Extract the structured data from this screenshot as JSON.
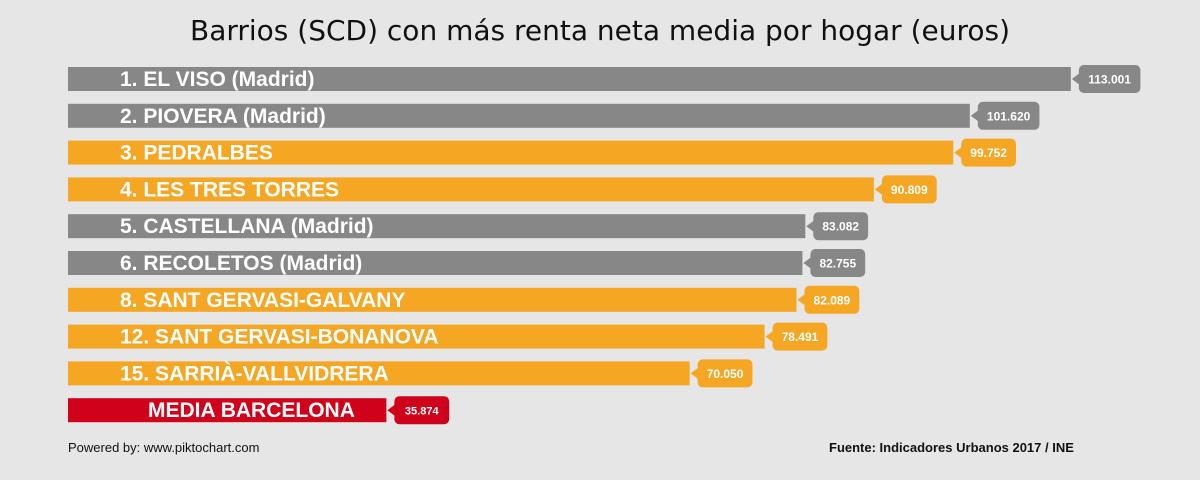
{
  "chart_data": {
    "type": "bar",
    "orientation": "horizontal",
    "title": "Barrios (SCD) con más renta neta media por hogar (euros)",
    "xlim": [
      0,
      115500
    ],
    "grid": false,
    "categories": [
      "1. EL VISO (Madrid)",
      "2. PIOVERA (Madrid)",
      "3. PEDRALBES",
      "4. LES TRES TORRES",
      "5. CASTELLANA (Madrid)",
      "6. RECOLETOS (Madrid)",
      "8. SANT GERVASI-GALVANY",
      "12. SANT GERVASI-BONANOVA",
      "15. SARRIÀ-VALLVIDRERA",
      "MEDIA BARCELONA"
    ],
    "values": [
      113001,
      101620,
      99752,
      90809,
      83082,
      82755,
      82089,
      78491,
      70050,
      35874
    ],
    "value_labels": [
      "113.001",
      "101.620",
      "99.752",
      "90.809",
      "83.082",
      "82.755",
      "82.089",
      "78.491",
      "70.050",
      "35.874"
    ],
    "groups": [
      "madrid",
      "madrid",
      "barcelona",
      "barcelona",
      "madrid",
      "madrid",
      "barcelona",
      "barcelona",
      "barcelona",
      "average"
    ],
    "colors": {
      "madrid": "#878787",
      "barcelona": "#f5a623",
      "average": "#d0021b"
    }
  },
  "footer": {
    "powered": "Powered by: www.piktochart.com",
    "source": "Fuente: Indicadores Urbanos 2017 / INE"
  }
}
